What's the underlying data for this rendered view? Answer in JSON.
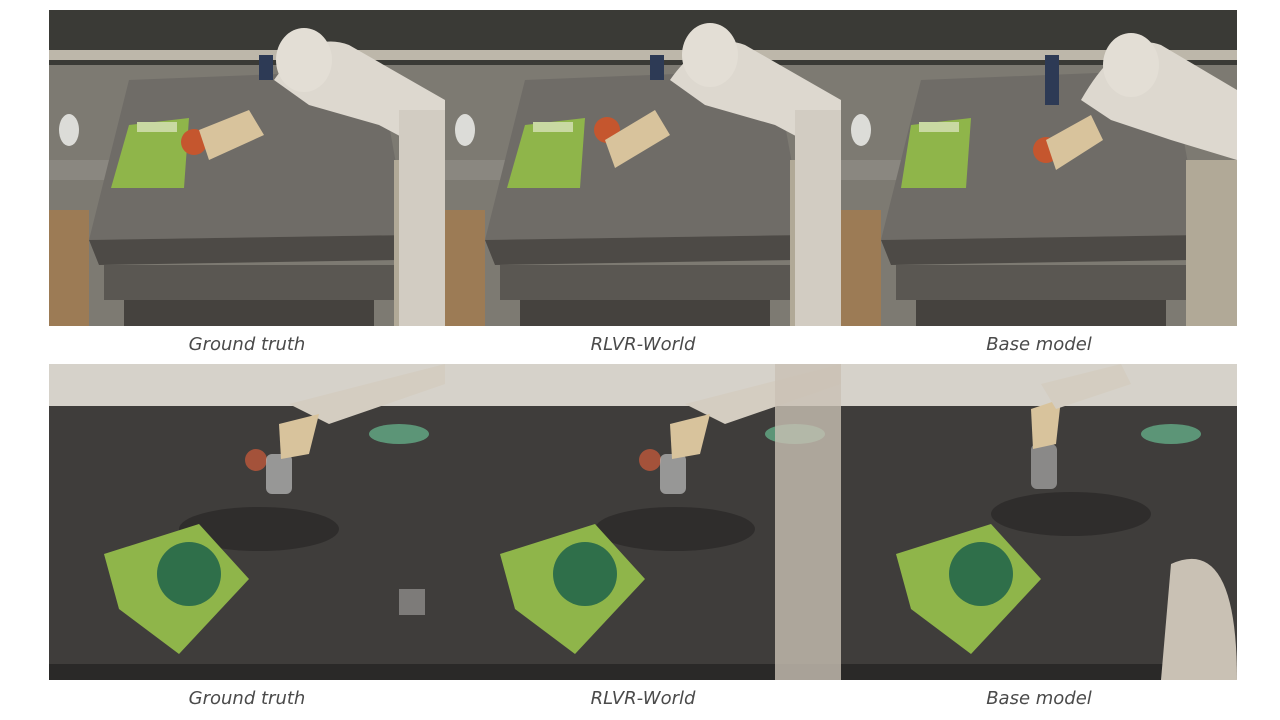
{
  "rows": [
    {
      "scene": "scene-kitchen-counter",
      "frames": [
        {
          "caption": "Ground truth"
        },
        {
          "caption": "RLVR-World"
        },
        {
          "caption": "Base model"
        }
      ]
    },
    {
      "scene": "scene-dark-table",
      "frames": [
        {
          "caption": "Ground truth"
        },
        {
          "caption": "RLVR-World"
        },
        {
          "caption": "Base model"
        }
      ]
    }
  ],
  "colors": {
    "counter_top": "#6f6c67",
    "counter_front": "#4d4a46",
    "dark_table": "#3f3d3b",
    "robot_arm": "#ddd8cf",
    "gripper": "#d8c39c",
    "snack_bag": "#8fb54a",
    "apple": "#c5562e",
    "caption_text": "#4a4a4a"
  }
}
